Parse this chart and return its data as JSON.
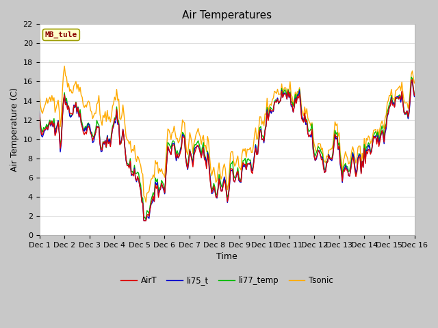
{
  "title": "Air Temperatures",
  "xlabel": "Time",
  "ylabel": "Air Temperature (C)",
  "ylim": [
    0,
    22
  ],
  "xlim": [
    0,
    360
  ],
  "label": "MB_tule",
  "legend": [
    "AirT",
    "li75_t",
    "li77_temp",
    "Tsonic"
  ],
  "colors": [
    "#dd0000",
    "#0000cc",
    "#00bb00",
    "#ffaa00"
  ],
  "xtick_positions": [
    0,
    24,
    48,
    72,
    96,
    120,
    144,
    168,
    192,
    216,
    240,
    264,
    288,
    312,
    336,
    360
  ],
  "xtick_labels": [
    "Dec 1",
    "Dec 2",
    "Dec 3",
    "Dec 4",
    "Dec 5",
    "Dec 6",
    "Dec 7",
    "Dec 8",
    "Dec 9",
    "Dec 10",
    "Dec 11",
    "Dec 12",
    "Dec 13",
    "Dec 14",
    "Dec 15",
    "Dec 16"
  ],
  "ytick_positions": [
    0,
    2,
    4,
    6,
    8,
    10,
    12,
    14,
    16,
    18,
    20,
    22
  ],
  "fig_bg": "#c8c8c8",
  "plot_bg": "#ffffff",
  "grid_color": "#dddddd",
  "linewidth": 1.0,
  "title_fontsize": 11,
  "label_fontsize": 9,
  "tick_fontsize": 8
}
